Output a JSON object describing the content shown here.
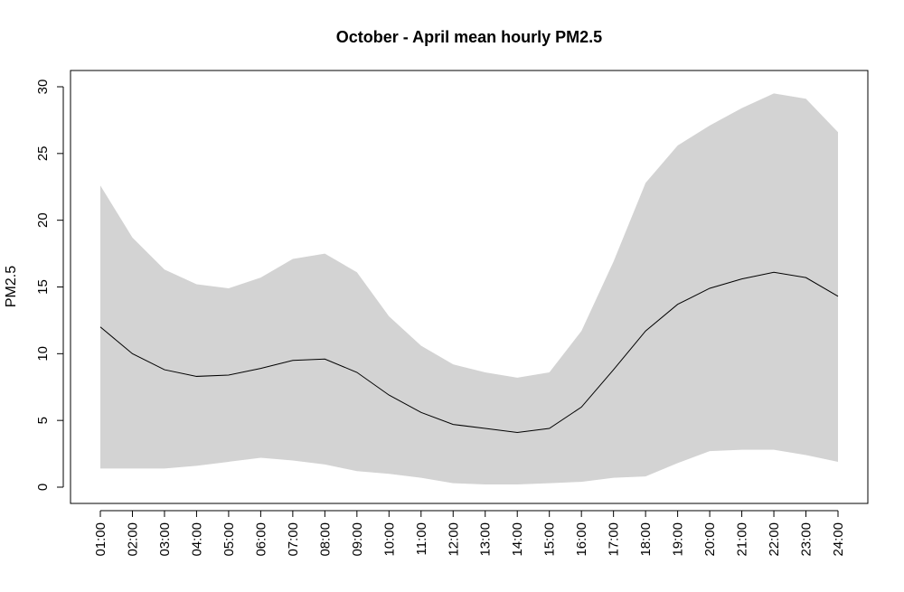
{
  "chart_data": {
    "type": "area",
    "title": "October - April mean hourly PM2.5",
    "xlabel": "",
    "ylabel": "PM2.5",
    "categories": [
      "01:00",
      "02:00",
      "03:00",
      "04:00",
      "05:00",
      "06:00",
      "07:00",
      "08:00",
      "09:00",
      "10:00",
      "11:00",
      "12:00",
      "13:00",
      "14:00",
      "15:00",
      "16:00",
      "17:00",
      "18:00",
      "19:00",
      "20:00",
      "21:00",
      "22:00",
      "23:00",
      "24:00"
    ],
    "y_ticks": [
      0,
      5,
      10,
      15,
      20,
      25,
      30
    ],
    "ylim": [
      -1.2,
      31.2
    ],
    "grid": false,
    "legend": "none",
    "series": [
      {
        "role": "band-upper",
        "values": [
          22.6,
          18.7,
          16.3,
          15.2,
          14.9,
          15.7,
          17.1,
          17.5,
          16.1,
          12.8,
          10.6,
          9.2,
          8.6,
          8.2,
          8.6,
          11.7,
          16.9,
          22.8,
          25.6,
          27.1,
          28.4,
          29.5,
          29.1,
          26.6
        ]
      },
      {
        "role": "band-lower",
        "values": [
          1.4,
          1.4,
          1.4,
          1.6,
          1.9,
          2.2,
          2.0,
          1.7,
          1.2,
          1.0,
          0.7,
          0.3,
          0.2,
          0.2,
          0.3,
          0.4,
          0.7,
          0.8,
          1.8,
          2.7,
          2.8,
          2.8,
          2.4,
          1.9
        ]
      },
      {
        "role": "mean",
        "values": [
          12.0,
          10.0,
          8.8,
          8.3,
          8.4,
          8.9,
          9.5,
          9.6,
          8.6,
          6.9,
          5.6,
          4.7,
          4.4,
          4.1,
          4.4,
          6.0,
          8.8,
          11.7,
          13.7,
          14.9,
          15.6,
          16.1,
          15.7,
          14.3
        ]
      }
    ],
    "colors": {
      "band": "#d3d3d3",
      "line": "#000000"
    }
  }
}
